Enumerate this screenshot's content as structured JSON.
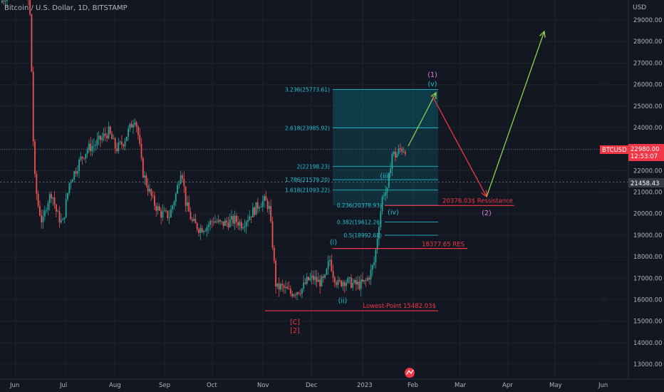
{
  "header": {
    "title": "Bitcoin / U.S. Dollar, 1D, BITSTAMP"
  },
  "chart_data": {
    "type": "candlestick",
    "title": "Bitcoin / U.S. Dollar, 1D, BITSTAMP",
    "currency_label": "USD",
    "y_ticks": [
      "29000.00",
      "28000.00",
      "27000.00",
      "26000.00",
      "25000.00",
      "24000.00",
      "23000.00",
      "22000.00",
      "21000.00",
      "20000.00",
      "19000.00",
      "18000.00",
      "17000.00",
      "16000.00",
      "15000.00",
      "14000.00",
      "13000.00"
    ],
    "x_ticks": [
      "Jun",
      "Jul",
      "Aug",
      "Sep",
      "Oct",
      "Nov",
      "Dec",
      "2023",
      "Feb",
      "Mar",
      "Apr",
      "May",
      "Jun"
    ],
    "last_price": {
      "symbol": "BTCUSD",
      "value": "22980.00",
      "countdown": "12:53:07",
      "color": "#f23645"
    },
    "crosshair_price": "21458.43",
    "up_color": "#26a69a",
    "down_color": "#ef5350",
    "fib_levels": [
      {
        "label": "3.236(25773.61)",
        "value": 25773.61
      },
      {
        "label": "2.618(23985.92)",
        "value": 23985.92
      },
      {
        "label": "2(22198.23)",
        "value": 22198.23
      },
      {
        "label": "1.786(21579.20)",
        "value": 21579.2
      },
      {
        "label": "1.618(21093.22)",
        "value": 21093.22
      },
      {
        "label": "0.236(20378.93)",
        "value": 20378.93
      },
      {
        "label": "0.382(19612.26)",
        "value": 19612.26
      },
      {
        "label": "0.5(18992.61)",
        "value": 18992.61
      }
    ],
    "levels": [
      {
        "label": "20376.03$ Ressistance",
        "value": 20376.03
      },
      {
        "label": "18377.65 RES",
        "value": 18377.65
      },
      {
        "label": "Lowest-Point 15482.03$",
        "value": 15482.03
      }
    ],
    "wave_labels": {
      "w_i": "(i)",
      "w_ii": "(ii)",
      "w_iii": "(iii)",
      "w_iv": "(iv)",
      "w_v": "(v)",
      "w_1": "(1)",
      "w_2": "(2)",
      "w_C": "[C]",
      "w_2b": "[2]"
    }
  }
}
